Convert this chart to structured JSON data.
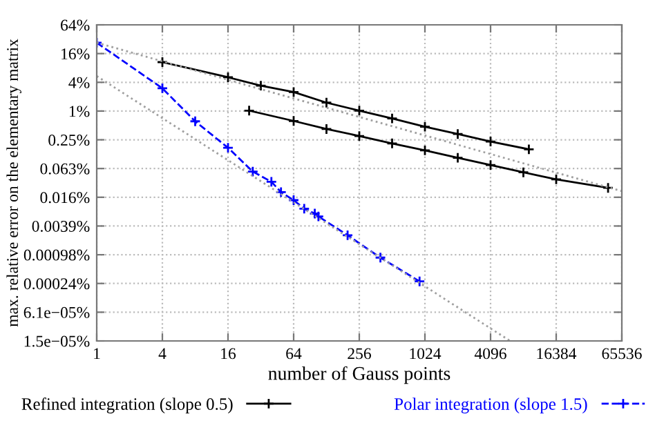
{
  "chart_data": {
    "type": "line",
    "xlabel": "number of Gauss points",
    "ylabel": "max. relative error on the elementary matrix",
    "log": "xy",
    "grid": true,
    "legend": "bottom",
    "marker": "cross",
    "xlim": [
      1,
      65536
    ],
    "xticks": [
      1,
      4,
      16,
      64,
      256,
      1024,
      4096,
      16384,
      65536
    ],
    "ylim": [
      1.52587890625e-05,
      64
    ],
    "yticks": [
      {
        "value": 64,
        "label": "64%"
      },
      {
        "value": 16,
        "label": "16%"
      },
      {
        "value": 4,
        "label": "4%"
      },
      {
        "value": 1,
        "label": "1%"
      },
      {
        "value": 0.25,
        "label": "0.25%"
      },
      {
        "value": 0.0625,
        "label": "0.063%"
      },
      {
        "value": 0.015625,
        "label": "0.016%"
      },
      {
        "value": 0.00390625,
        "label": "0.0039%"
      },
      {
        "value": 0.0009765625,
        "label": "0.00098%"
      },
      {
        "value": 0.000244140625,
        "label": "0.00024%"
      },
      {
        "value": 6.103515625e-05,
        "label": "6.1e−05%"
      },
      {
        "value": 1.52587890625e-05,
        "label": "1.5e−05%"
      }
    ],
    "series": [
      {
        "name": "Refined integration (slope 0.5)",
        "color": "#000000",
        "line_style": "solid",
        "x": [
          4,
          16,
          32,
          64,
          128,
          256,
          512,
          1024,
          2048,
          4096,
          9200
        ],
        "values": [
          10.6,
          5.1,
          3.4,
          2.5,
          1.5,
          1.02,
          0.7,
          0.47,
          0.33,
          0.23,
          0.158
        ]
      },
      {
        "color": "#000000",
        "line_style": "solid",
        "x": [
          25,
          64,
          128,
          256,
          512,
          1024,
          2048,
          4096,
          8192,
          16384,
          49000
        ],
        "values": [
          1.02,
          0.62,
          0.42,
          0.3,
          0.21,
          0.15,
          0.105,
          0.074,
          0.052,
          0.037,
          0.0246
        ]
      },
      {
        "name": "Polar integration (slope 1.5)",
        "color": "#0000ff",
        "line_style": "dashed",
        "x": [
          1,
          4,
          8,
          16,
          27,
          40,
          49,
          64,
          80,
          100,
          108,
          200,
          400,
          914
        ],
        "values": [
          27,
          3,
          0.61,
          0.17,
          0.054,
          0.033,
          0.02,
          0.0136,
          0.009,
          0.0071,
          0.0062,
          0.0025,
          0.00085,
          0.00027
        ]
      },
      {
        "color": "#a0a0a0",
        "line_style": "dotted",
        "marker": "none",
        "x": [
          1,
          65536
        ],
        "values": [
          27,
          0.021
        ]
      },
      {
        "color": "#a0a0a0",
        "line_style": "dotted",
        "marker": "none",
        "x": [
          1,
          6200
        ],
        "values": [
          5.4,
          1.52587890625e-05
        ]
      }
    ]
  }
}
